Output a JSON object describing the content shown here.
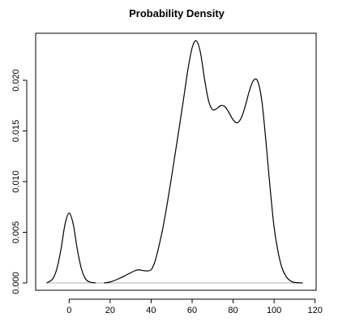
{
  "chart_data": {
    "type": "line",
    "title": "Probability Density",
    "xlabel": "",
    "ylabel": "",
    "xlim": [
      -18,
      120
    ],
    "ylim": [
      0,
      0.0242
    ],
    "x_ticks": [
      0,
      20,
      40,
      60,
      80,
      100,
      120
    ],
    "x_tick_labels": [
      "0",
      "20",
      "40",
      "60",
      "80",
      "100",
      "120"
    ],
    "y_ticks": [
      0,
      0.005,
      0.01,
      0.015,
      0.02
    ],
    "y_tick_labels": [
      "0.000",
      "0.005",
      "0.010",
      "0.015",
      "0.020"
    ],
    "grid": false,
    "legend": "none",
    "baseline": 0,
    "colors": {
      "line": "#000000",
      "baseline": "#b0b0b0",
      "axis": "#000000"
    },
    "series": [
      {
        "segment": "left peak",
        "x": [
          -11,
          -8,
          -6,
          -4,
          -2,
          0,
          2,
          4,
          6,
          8,
          10,
          13
        ],
        "y": [
          0,
          0.0004,
          0.0014,
          0.0033,
          0.0058,
          0.0069,
          0.0058,
          0.0033,
          0.0014,
          0.0004,
          0.0001,
          0
        ]
      },
      {
        "segment": "main body",
        "x": [
          17,
          20,
          24,
          28,
          32,
          34,
          37,
          40,
          42,
          44,
          46,
          48,
          50,
          52,
          54,
          56,
          58,
          60,
          62,
          64,
          66,
          68,
          70,
          72,
          74,
          76,
          78,
          80,
          82,
          84,
          86,
          88,
          90,
          92,
          94,
          96,
          98,
          100,
          102,
          104,
          106,
          108,
          110,
          114
        ],
        "y": [
          0,
          0.0001,
          0.0004,
          0.0008,
          0.0012,
          0.0013,
          0.0012,
          0.0013,
          0.0022,
          0.0038,
          0.0057,
          0.008,
          0.0105,
          0.0131,
          0.0157,
          0.0184,
          0.0211,
          0.0232,
          0.0239,
          0.0228,
          0.0202,
          0.018,
          0.0171,
          0.0172,
          0.0175,
          0.0174,
          0.0168,
          0.0161,
          0.0158,
          0.0163,
          0.0175,
          0.019,
          0.02,
          0.0199,
          0.018,
          0.014,
          0.0095,
          0.0055,
          0.003,
          0.0014,
          0.0006,
          0.0002,
          5e-05,
          0
        ]
      }
    ]
  }
}
